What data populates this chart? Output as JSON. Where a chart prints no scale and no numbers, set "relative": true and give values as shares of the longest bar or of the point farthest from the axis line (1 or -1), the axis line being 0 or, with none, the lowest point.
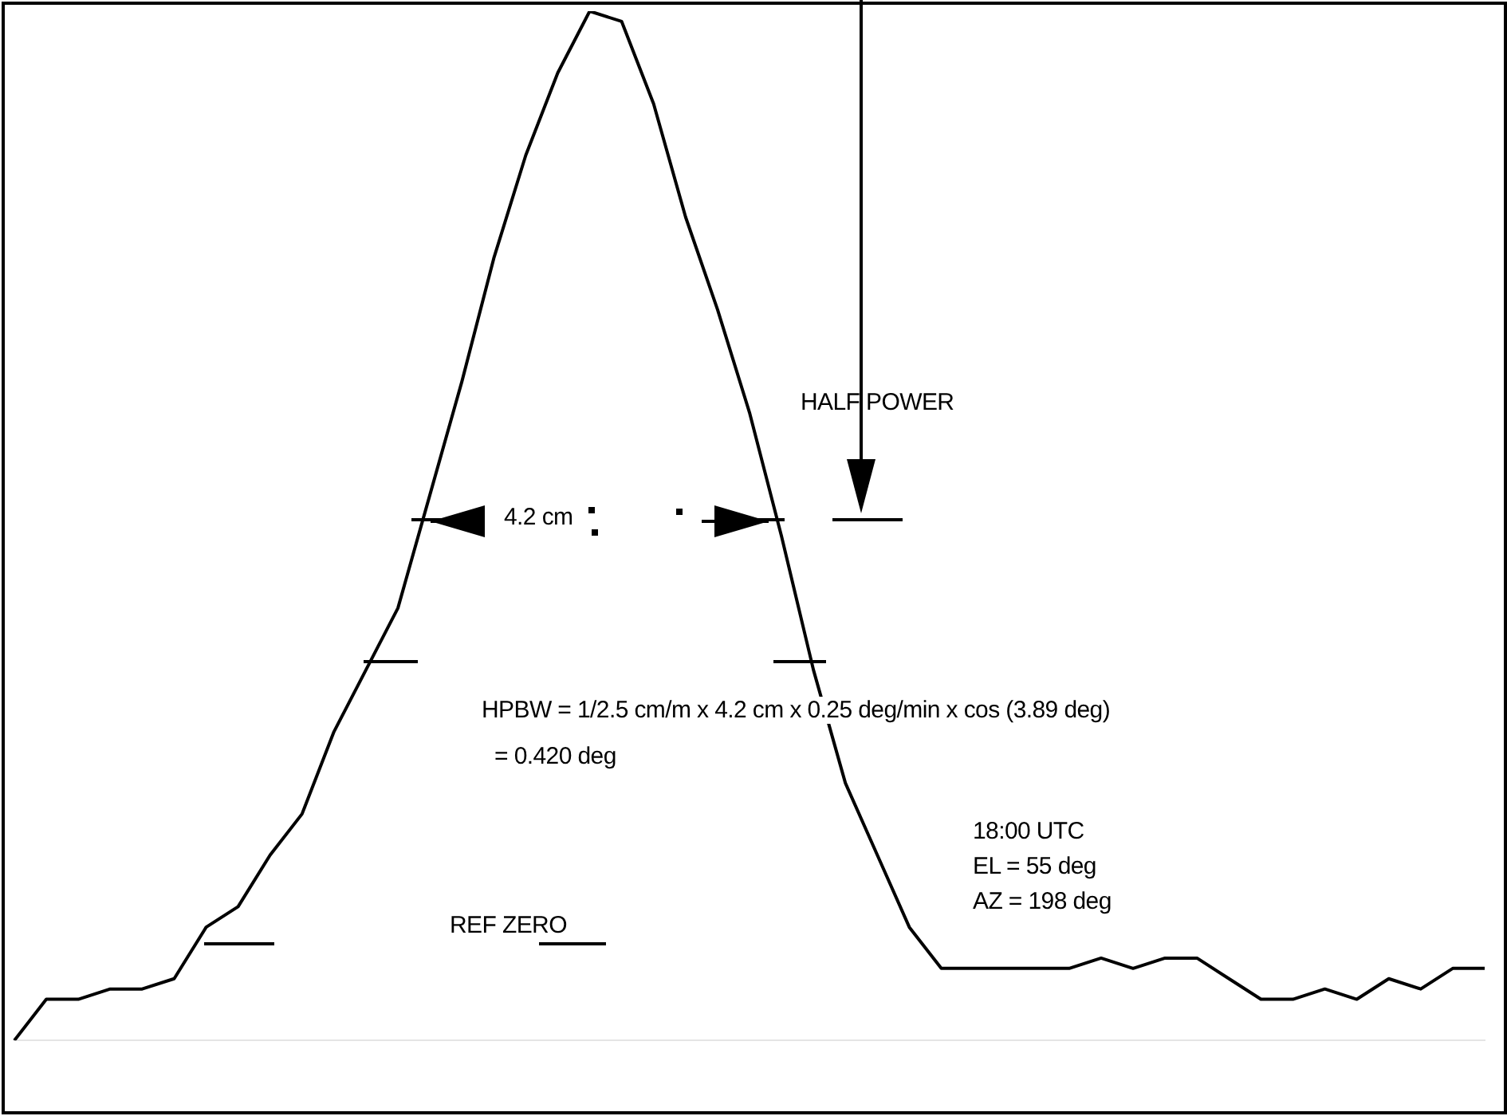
{
  "chart_data": {
    "type": "line",
    "relative": true,
    "color": "#000000",
    "marker": "none",
    "line_style": "solid",
    "legend": false,
    "categories": [
      null,
      null,
      null,
      null,
      null,
      null,
      null,
      null,
      null,
      null,
      null,
      null,
      null,
      null,
      null,
      null,
      null,
      null,
      null,
      null,
      null,
      null,
      null,
      null,
      null,
      null,
      null,
      null,
      null,
      null,
      null,
      null,
      null,
      null,
      null,
      null,
      null,
      null,
      null,
      null,
      null,
      null,
      null,
      null,
      null,
      null,
      null
    ],
    "values": [
      0,
      0.04,
      0.04,
      0.05,
      0.05,
      0.06,
      0.11,
      0.13,
      0.18,
      0.22,
      0.3,
      0.36,
      0.42,
      0.53,
      0.64,
      0.76,
      0.86,
      0.94,
      1,
      0.99,
      0.91,
      0.8,
      0.71,
      0.61,
      0.49,
      0.36,
      0.25,
      0.18,
      0.11,
      0.07,
      0.07,
      0.07,
      0.07,
      0.07,
      0.08,
      0.07,
      0.08,
      0.08,
      0.06,
      0.04,
      0.04,
      0.05,
      0.04,
      0.06,
      0.05,
      0.07,
      0.07
    ],
    "annotations": [
      "HALF POWER",
      "4.2 cm",
      "HPBW = 1/2.5 cm/m x 4.2 cm x 0.25 deg/min x cos (3.89 deg)",
      "= 0.420 deg",
      "18:00 UTC",
      "EL = 55 deg",
      "AZ = 198 deg",
      "REF ZERO"
    ]
  }
}
